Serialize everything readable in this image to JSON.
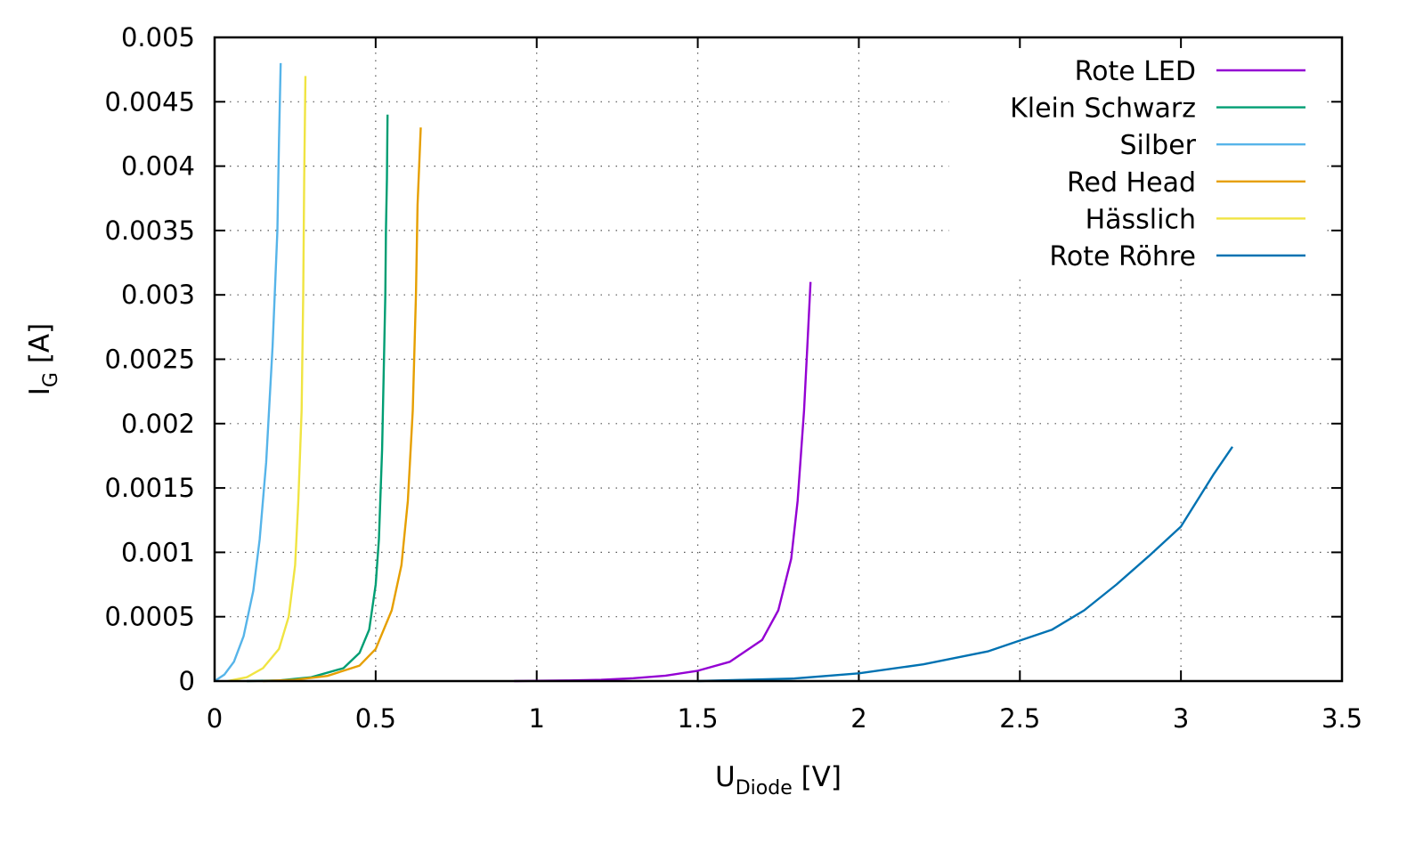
{
  "chart_data": {
    "type": "line",
    "xlabel": {
      "main": "U",
      "sub": "Diode",
      "unit": " [V]"
    },
    "ylabel": {
      "main": "I",
      "sub": "G",
      "unit": " [A]"
    },
    "xlim": [
      0,
      3.5
    ],
    "ylim": [
      0,
      0.005
    ],
    "xticks": [
      {
        "v": 0,
        "label": "0"
      },
      {
        "v": 0.5,
        "label": "0.5"
      },
      {
        "v": 1,
        "label": "1"
      },
      {
        "v": 1.5,
        "label": "1.5"
      },
      {
        "v": 2,
        "label": "2"
      },
      {
        "v": 2.5,
        "label": "2.5"
      },
      {
        "v": 3,
        "label": "3"
      },
      {
        "v": 3.5,
        "label": "3.5"
      }
    ],
    "yticks": [
      {
        "v": 0,
        "label": "0"
      },
      {
        "v": 0.0005,
        "label": "0.0005"
      },
      {
        "v": 0.001,
        "label": "0.001"
      },
      {
        "v": 0.0015,
        "label": "0.0015"
      },
      {
        "v": 0.002,
        "label": "0.002"
      },
      {
        "v": 0.0025,
        "label": "0.0025"
      },
      {
        "v": 0.003,
        "label": "0.003"
      },
      {
        "v": 0.0035,
        "label": "0.0035"
      },
      {
        "v": 0.004,
        "label": "0.004"
      },
      {
        "v": 0.0045,
        "label": "0.0045"
      },
      {
        "v": 0.005,
        "label": "0.005"
      }
    ],
    "grid": true,
    "legend_position": "top-right",
    "series": [
      {
        "name": "Rote LED",
        "color": "#9400d3",
        "points": [
          [
            0.93,
            0
          ],
          [
            1.1,
            5e-06
          ],
          [
            1.2,
            1e-05
          ],
          [
            1.3,
            2.2e-05
          ],
          [
            1.4,
            4.2e-05
          ],
          [
            1.5,
            8e-05
          ],
          [
            1.6,
            0.00015
          ],
          [
            1.7,
            0.00032
          ],
          [
            1.75,
            0.00055
          ],
          [
            1.79,
            0.00095
          ],
          [
            1.81,
            0.0014
          ],
          [
            1.83,
            0.0021
          ],
          [
            1.84,
            0.0026
          ],
          [
            1.85,
            0.0031
          ]
        ]
      },
      {
        "name": "Klein Schwarz",
        "color": "#009e73",
        "points": [
          [
            0.1,
            0
          ],
          [
            0.2,
            5e-06
          ],
          [
            0.3,
            3e-05
          ],
          [
            0.4,
            0.0001
          ],
          [
            0.45,
            0.00022
          ],
          [
            0.48,
            0.0004
          ],
          [
            0.5,
            0.00075
          ],
          [
            0.51,
            0.0011
          ],
          [
            0.52,
            0.0018
          ],
          [
            0.525,
            0.0024
          ],
          [
            0.53,
            0.003
          ],
          [
            0.532,
            0.0035
          ],
          [
            0.535,
            0.0039
          ],
          [
            0.537,
            0.0044
          ]
        ]
      },
      {
        "name": "Silber",
        "color": "#56b4e9",
        "points": [
          [
            0,
            0
          ],
          [
            0.03,
            5e-05
          ],
          [
            0.06,
            0.00015
          ],
          [
            0.09,
            0.00035
          ],
          [
            0.12,
            0.0007
          ],
          [
            0.14,
            0.0011
          ],
          [
            0.16,
            0.0017
          ],
          [
            0.18,
            0.0026
          ],
          [
            0.195,
            0.0035
          ],
          [
            0.2,
            0.0042
          ],
          [
            0.205,
            0.0048
          ]
        ]
      },
      {
        "name": "Red Head",
        "color": "#e69f00",
        "points": [
          [
            0.15,
            0
          ],
          [
            0.25,
            1e-05
          ],
          [
            0.35,
            4e-05
          ],
          [
            0.45,
            0.00012
          ],
          [
            0.5,
            0.00025
          ],
          [
            0.55,
            0.00055
          ],
          [
            0.58,
            0.0009
          ],
          [
            0.6,
            0.0014
          ],
          [
            0.615,
            0.0021
          ],
          [
            0.625,
            0.003
          ],
          [
            0.63,
            0.0037
          ],
          [
            0.64,
            0.0043
          ]
        ]
      },
      {
        "name": "Hässlich",
        "color": "#f0e442",
        "points": [
          [
            0.04,
            0
          ],
          [
            0.1,
            3e-05
          ],
          [
            0.15,
            0.0001
          ],
          [
            0.2,
            0.00025
          ],
          [
            0.23,
            0.0005
          ],
          [
            0.25,
            0.0009
          ],
          [
            0.26,
            0.0014
          ],
          [
            0.27,
            0.0021
          ],
          [
            0.275,
            0.003
          ],
          [
            0.278,
            0.0039
          ],
          [
            0.282,
            0.0047
          ]
        ]
      },
      {
        "name": "Rote Röhre",
        "color": "#0072b2",
        "points": [
          [
            1.5,
            0
          ],
          [
            1.8,
            2e-05
          ],
          [
            2.0,
            6e-05
          ],
          [
            2.2,
            0.00013
          ],
          [
            2.4,
            0.00023
          ],
          [
            2.6,
            0.0004
          ],
          [
            2.7,
            0.00055
          ],
          [
            2.8,
            0.00075
          ],
          [
            2.9,
            0.00097
          ],
          [
            3.0,
            0.0012
          ],
          [
            3.1,
            0.0016
          ],
          [
            3.16,
            0.00182
          ]
        ]
      }
    ]
  }
}
